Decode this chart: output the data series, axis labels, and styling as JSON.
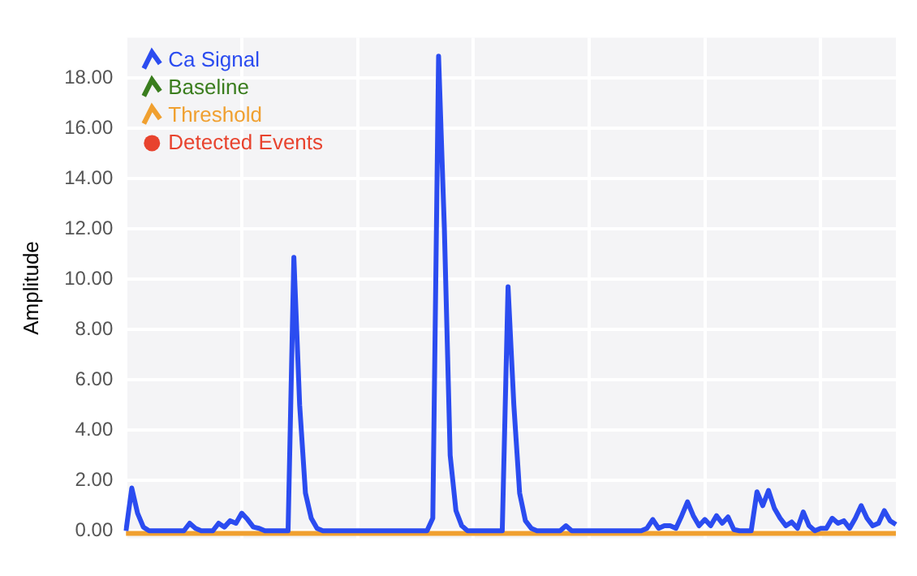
{
  "chart_data": {
    "type": "line",
    "ylabel": "Amplitude",
    "categories": [
      null,
      null,
      null,
      null,
      null,
      null,
      null,
      null,
      null,
      null,
      null,
      null,
      null,
      null,
      null,
      null,
      null,
      null,
      null,
      null,
      null,
      null,
      null,
      null,
      null,
      null,
      null,
      null,
      null,
      null,
      null,
      null,
      null,
      null,
      null,
      null,
      null,
      null,
      null,
      null,
      null,
      null,
      null,
      null,
      null,
      null,
      null,
      null,
      null,
      null,
      null,
      null,
      null,
      null,
      null,
      null,
      null,
      null,
      null,
      null,
      null,
      null,
      null,
      null,
      null,
      null,
      null,
      null,
      null,
      null,
      null,
      null,
      null,
      null,
      null,
      null,
      null,
      null,
      null,
      null,
      null,
      null,
      null,
      null,
      null,
      null,
      null,
      null,
      null,
      null,
      null,
      null,
      null,
      null,
      null,
      null,
      null,
      null,
      null,
      null,
      null,
      null,
      null,
      null,
      null,
      null,
      null,
      null,
      null,
      null,
      null,
      null,
      null,
      null,
      null,
      null,
      null,
      null,
      null,
      null,
      null,
      null,
      null,
      null,
      null,
      null,
      null,
      null,
      null,
      null,
      null,
      null,
      null,
      null
    ],
    "ylim": [
      -0.3,
      19.6
    ],
    "yticks": [
      {
        "value": 0,
        "label": "0.00"
      },
      {
        "value": 2,
        "label": "2.00"
      },
      {
        "value": 4,
        "label": "4.00"
      },
      {
        "value": 6,
        "label": "6.00"
      },
      {
        "value": 8,
        "label": "8.00"
      },
      {
        "value": 10,
        "label": "10.00"
      },
      {
        "value": 12,
        "label": "12.00"
      },
      {
        "value": 14,
        "label": "14.00"
      },
      {
        "value": 16,
        "label": "16.00"
      },
      {
        "value": 18,
        "label": "18.00"
      }
    ],
    "tick_labels": "y",
    "grid": true,
    "legend": "top left",
    "marker": "none",
    "series": [
      {
        "name": "Ca Signal",
        "color": "#2b4cf0",
        "values": [
          0,
          1.7,
          0.7,
          0.15,
          0,
          0,
          0,
          0,
          0,
          0,
          0,
          0.3,
          0.1,
          0,
          0,
          0,
          0.3,
          0.15,
          0.4,
          0.3,
          0.7,
          0.45,
          0.15,
          0.1,
          0,
          0,
          0,
          0,
          0,
          10.87,
          5,
          1.5,
          0.5,
          0.1,
          0,
          0,
          0,
          0,
          0,
          0,
          0,
          0,
          0,
          0,
          0,
          0,
          0,
          0,
          0,
          0,
          0,
          0,
          0,
          0.5,
          18.86,
          12,
          3,
          0.8,
          0.2,
          0,
          0,
          0,
          0,
          0,
          0,
          0,
          9.7,
          5,
          1.5,
          0.4,
          0.1,
          0,
          0,
          0,
          0,
          0,
          0.2,
          0,
          0,
          0,
          0,
          0,
          0,
          0,
          0,
          0,
          0,
          0,
          0,
          0,
          0.1,
          0.45,
          0.1,
          0.2,
          0.2,
          0.1,
          0.6,
          1.15,
          0.6,
          0.2,
          0.45,
          0.2,
          0.6,
          0.3,
          0.55,
          0.05,
          0,
          0,
          0,
          1.55,
          1.0,
          1.6,
          0.9,
          0.5,
          0.2,
          0.35,
          0.1,
          0.75,
          0.2,
          0,
          0.1,
          0.1,
          0.5,
          0.3,
          0.4,
          0.1,
          0.5,
          1.0,
          0.5,
          0.2,
          0.3,
          0.8,
          0.4,
          0.25
        ]
      },
      {
        "name": "Baseline",
        "color": "#3a7d1e",
        "values": [
          null,
          null,
          null,
          null,
          null,
          null,
          null,
          null,
          null,
          null,
          null,
          null,
          null,
          null,
          null,
          null,
          null,
          null,
          null,
          null,
          null,
          null,
          null,
          null,
          null,
          null,
          null,
          null,
          null,
          null,
          null,
          null,
          null,
          null,
          null,
          null,
          null,
          null,
          null,
          null,
          null,
          null,
          null,
          null,
          null,
          null,
          null,
          null,
          null,
          null,
          null,
          null,
          null,
          null,
          null,
          null,
          null,
          null,
          null,
          null,
          null,
          null,
          null,
          null,
          null,
          null,
          null,
          null,
          null,
          null,
          null,
          null,
          null,
          null,
          null,
          null,
          null,
          null,
          null,
          null,
          null,
          null,
          null,
          null,
          null,
          null,
          null,
          null,
          null,
          null,
          null,
          null,
          null,
          null,
          null,
          null,
          null,
          null,
          null,
          null,
          null,
          null,
          null,
          null,
          null,
          null,
          null,
          null,
          null,
          null,
          null,
          null,
          null,
          null,
          null,
          null,
          null,
          null,
          null,
          null,
          null,
          null,
          null,
          null,
          null,
          null,
          null,
          null,
          null,
          null,
          null,
          null,
          null,
          null
        ]
      },
      {
        "name": "Threshold",
        "color": "#f0a030",
        "values": [
          -0.1,
          -0.1,
          -0.1,
          -0.1,
          -0.1,
          -0.1,
          -0.1,
          -0.1,
          -0.1,
          -0.1,
          -0.1,
          -0.1,
          -0.1,
          -0.1,
          -0.1,
          -0.1,
          -0.1,
          -0.1,
          -0.1,
          -0.1,
          -0.1,
          -0.1,
          -0.1,
          -0.1,
          -0.1,
          -0.1,
          -0.1,
          -0.1,
          -0.1,
          -0.1,
          -0.1,
          -0.1,
          -0.1,
          -0.1,
          -0.1,
          -0.1,
          -0.1,
          -0.1,
          -0.1,
          -0.1,
          -0.1,
          -0.1,
          -0.1,
          -0.1,
          -0.1,
          -0.1,
          -0.1,
          -0.1,
          -0.1,
          -0.1,
          -0.1,
          -0.1,
          -0.1,
          -0.1,
          -0.1,
          -0.1,
          -0.1,
          -0.1,
          -0.1,
          -0.1,
          -0.1,
          -0.1,
          -0.1,
          -0.1,
          -0.1,
          -0.1,
          -0.1,
          -0.1,
          -0.1,
          -0.1,
          -0.1,
          -0.1,
          -0.1,
          -0.1,
          -0.1,
          -0.1,
          -0.1,
          -0.1,
          -0.1,
          -0.1,
          -0.1,
          -0.1,
          -0.1,
          -0.1,
          -0.1,
          -0.1,
          -0.1,
          -0.1,
          -0.1,
          -0.1,
          -0.1,
          -0.1,
          -0.1,
          -0.1,
          -0.1,
          -0.1,
          -0.1,
          -0.1,
          -0.1,
          -0.1,
          -0.1,
          -0.1,
          -0.1,
          -0.1,
          -0.1,
          -0.1,
          -0.1,
          -0.1,
          -0.1,
          -0.1,
          -0.1,
          -0.1,
          -0.1,
          -0.1,
          -0.1,
          -0.1,
          -0.1,
          -0.1,
          -0.1,
          -0.1,
          -0.1,
          -0.1,
          -0.1,
          -0.1,
          -0.1,
          -0.1,
          -0.1,
          -0.1,
          -0.1,
          -0.1,
          -0.1,
          -0.1,
          -0.1,
          -0.1
        ]
      },
      {
        "name": "Detected Events",
        "type": "scatter",
        "marker": "circle",
        "color": "#e8432e",
        "values": [
          null,
          null,
          null,
          null,
          null,
          null,
          null,
          null,
          null,
          null,
          null,
          null,
          null,
          null,
          null,
          null,
          null,
          null,
          null,
          null,
          null,
          null,
          null,
          null,
          null,
          null,
          null,
          null,
          null,
          null,
          null,
          null,
          null,
          null,
          null,
          null,
          null,
          null,
          null,
          null,
          null,
          null,
          null,
          null,
          null,
          null,
          null,
          null,
          null,
          null,
          null,
          null,
          null,
          null,
          null,
          null,
          null,
          null,
          null,
          null,
          null,
          null,
          null,
          null,
          null,
          null,
          null,
          null,
          null,
          null,
          null,
          null,
          null,
          null,
          null,
          null,
          null,
          null,
          null,
          null,
          null,
          null,
          null,
          null,
          null,
          null,
          null,
          null,
          null,
          null,
          null,
          null,
          null,
          null,
          null,
          null,
          null,
          null,
          null,
          null,
          null,
          null,
          null,
          null,
          null,
          null,
          null,
          null,
          null,
          null,
          null,
          null,
          null,
          null,
          null,
          null,
          null,
          null,
          null,
          null,
          null,
          null,
          null,
          null,
          null,
          null,
          null,
          null,
          null,
          null,
          null,
          null,
          null,
          null
        ]
      }
    ]
  }
}
